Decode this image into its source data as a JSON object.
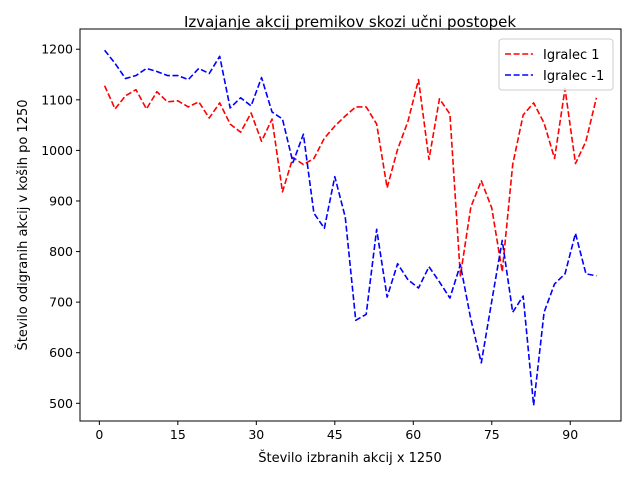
{
  "chart_data": {
    "type": "line",
    "title": "Izvajanje akcij premikov skozi učni postopek",
    "xlabel": "Število izbranih akcij x 1250",
    "ylabel": "Število odigranih akcij v koših po 1250",
    "xlim": [
      -3.7,
      99.7
    ],
    "ylim": [
      465,
      1240
    ],
    "xticks": [
      0,
      15,
      30,
      45,
      60,
      75,
      90
    ],
    "yticks": [
      500,
      600,
      700,
      800,
      900,
      1000,
      1100,
      1200
    ],
    "grid": false,
    "legend_position": "upper right",
    "x": [
      1,
      3,
      5,
      7,
      9,
      11,
      13,
      15,
      17,
      19,
      21,
      23,
      25,
      27,
      29,
      31,
      33,
      35,
      37,
      39,
      41,
      43,
      45,
      47,
      49,
      51,
      53,
      55,
      57,
      59,
      61,
      63,
      65,
      67,
      69,
      71,
      73,
      75,
      77,
      79,
      81,
      83,
      85,
      87,
      89,
      91,
      93,
      95
    ],
    "series": [
      {
        "name": "Igralec 1",
        "color": "#ff0000",
        "dash": "dashed",
        "values": [
          1128,
          1082,
          1108,
          1120,
          1082,
          1116,
          1096,
          1098,
          1086,
          1096,
          1064,
          1094,
          1052,
          1036,
          1074,
          1018,
          1062,
          918,
          986,
          972,
          984,
          1024,
          1048,
          1068,
          1086,
          1086,
          1052,
          926,
          1002,
          1058,
          1140,
          982,
          1102,
          1072,
          752,
          888,
          940,
          886,
          760,
          972,
          1070,
          1094,
          1054,
          984,
          1122,
          974,
          1018,
          1104
        ]
      },
      {
        "name": "Igralec -1",
        "color": "#0000ff",
        "dash": "dashed",
        "values": [
          1198,
          1172,
          1142,
          1148,
          1162,
          1156,
          1148,
          1148,
          1140,
          1162,
          1152,
          1186,
          1084,
          1104,
          1088,
          1144,
          1076,
          1062,
          976,
          1032,
          876,
          846,
          948,
          868,
          664,
          676,
          844,
          710,
          776,
          744,
          728,
          770,
          740,
          708,
          774,
          666,
          580,
          702,
          822,
          680,
          712,
          496,
          680,
          736,
          756,
          836,
          756,
          752
        ]
      }
    ]
  }
}
